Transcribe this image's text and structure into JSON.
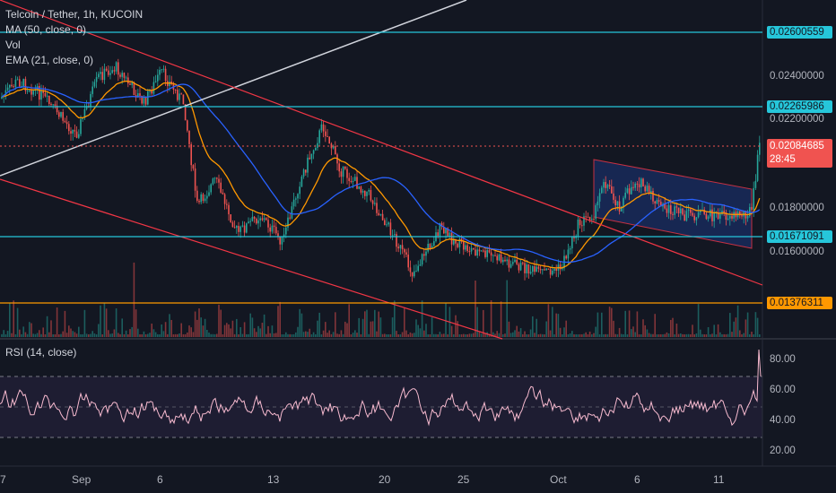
{
  "legend": {
    "title": "Telcoin / Tether, 1h, KUCOIN",
    "ma": "MA (50, close, 0)",
    "vol": "Vol",
    "ema": "EMA (21, close, 0)"
  },
  "rsi": {
    "label": "RSI (14, close)",
    "levels": [
      "80.00",
      "60.00",
      "40.00",
      "20.00"
    ]
  },
  "price_axis": {
    "labels": [
      "0.02400000",
      "0.02200000",
      "0.01800000",
      "0.01600000"
    ]
  },
  "tags": {
    "level_1": "0.02600559",
    "level_2": "0.02265986",
    "current_price": "0.02084685",
    "countdown": "28:45",
    "level_3": "0.01671091",
    "level_4": "0.01376311"
  },
  "x_axis": {
    "labels": [
      "7",
      "Sep",
      "6",
      "13",
      "20",
      "25",
      "Oct",
      "6",
      "11"
    ]
  },
  "colors": {
    "background": "#131722",
    "level_line": "#26c6da",
    "support_line": "#ff9800",
    "trend_line": "#f23645",
    "white_line": "#d1d4dc",
    "ma": "#2962ff",
    "ema": "#ff9800",
    "up": "#26a69a",
    "down": "#ef5350",
    "rsi": "#f8bbd0",
    "current_tag": "#f05350"
  }
}
